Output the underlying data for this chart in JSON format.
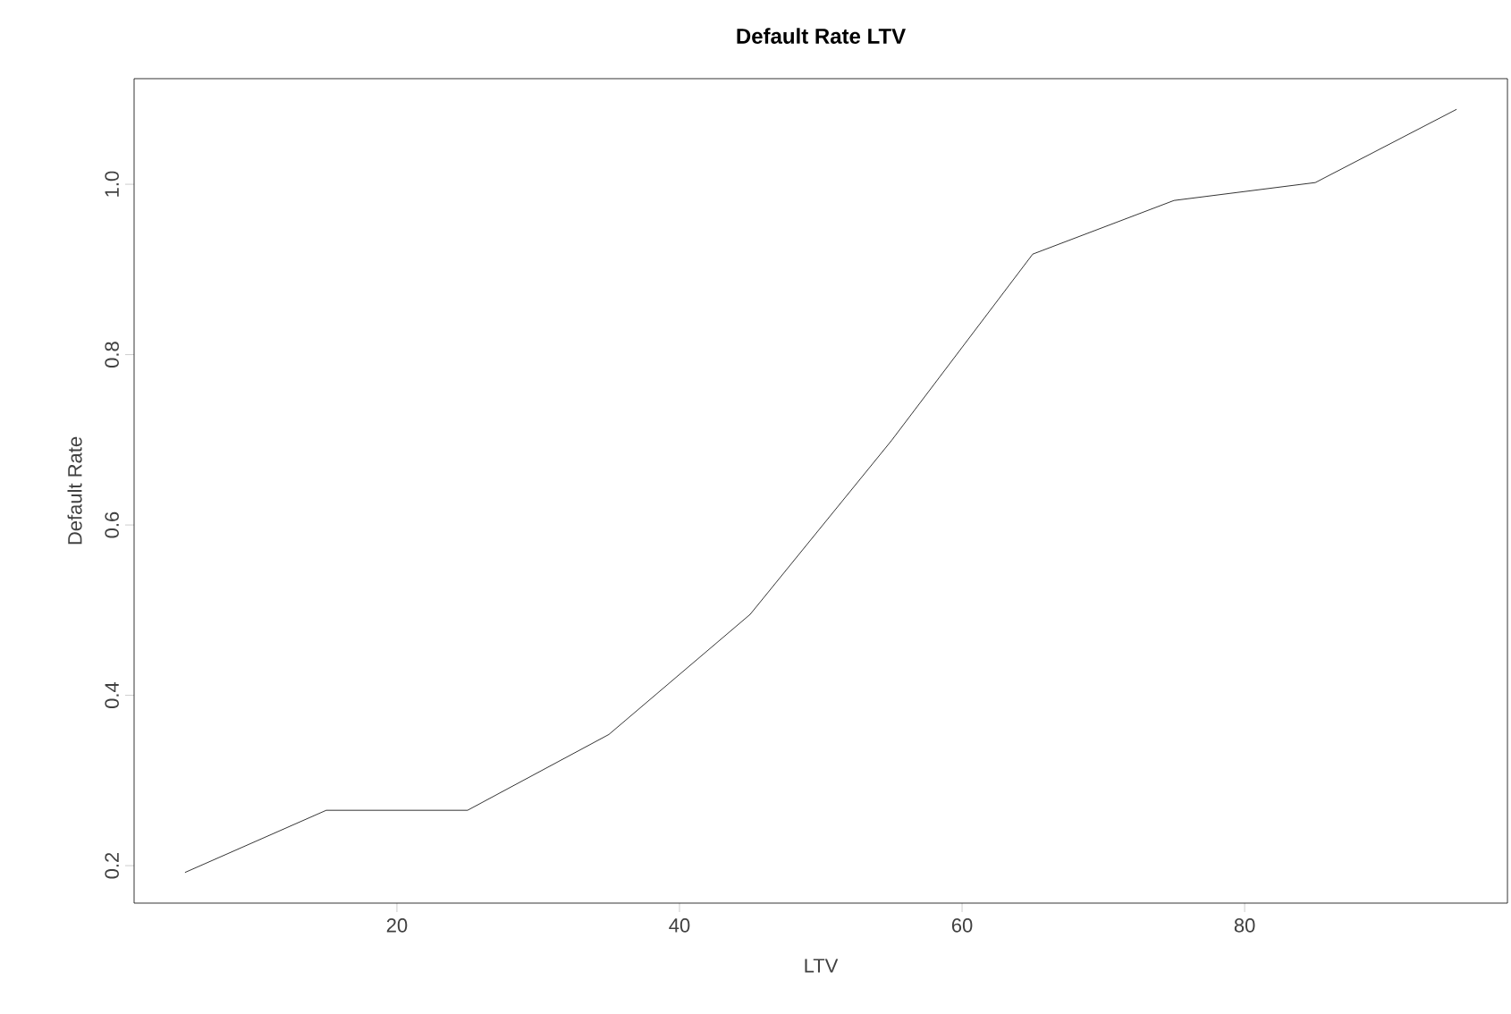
{
  "chart_data": {
    "type": "line",
    "title": "Default Rate LTV",
    "xlabel": "LTV",
    "ylabel": "Default Rate",
    "x": [
      5,
      15,
      25,
      35,
      45,
      55,
      65,
      75,
      85,
      95
    ],
    "values": [
      0.192,
      0.265,
      0.265,
      0.354,
      0.495,
      0.699,
      0.918,
      0.981,
      1.002,
      1.088
    ],
    "color": "#000000",
    "xlim": [
      1.4,
      98.6
    ],
    "ylim": [
      0.156,
      1.124
    ],
    "xticks": [
      20,
      40,
      60,
      80
    ],
    "yticks": [
      0.2,
      0.4,
      0.6,
      0.8,
      {
        "value": 1.0,
        "label": "1.0"
      }
    ]
  }
}
